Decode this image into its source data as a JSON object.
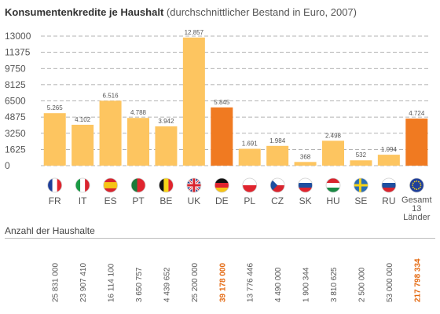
{
  "title": "Konsumentenkredite je Haushalt",
  "subtitle": "(durchschnittlicher Bestand in Euro, 2007)",
  "households_label": "Anzahl der Haushalte",
  "colors": {
    "bar": "#FDC560",
    "highlight": "#F07A21",
    "grid": "#9a9a9a",
    "axis_text": "#555555",
    "highlight_text": "#E46A12"
  },
  "chart_data": {
    "type": "bar",
    "categories": [
      "FR",
      "IT",
      "ES",
      "PT",
      "BE",
      "UK",
      "DE",
      "PL",
      "CZ",
      "SK",
      "HU",
      "SE",
      "RU",
      "Gesamt 13 Länder"
    ],
    "values": [
      5265,
      4102,
      6516,
      4788,
      3942,
      12857,
      5845,
      1691,
      1984,
      368,
      2498,
      532,
      1094,
      4724
    ],
    "value_labels": [
      "5.265",
      "4.102",
      "6.516",
      "4.788",
      "3.942",
      "12.857",
      "5.845",
      "1.691",
      "1.984",
      "368",
      "2.498",
      "532",
      "1.094",
      "4.724"
    ],
    "highlighted": [
      false,
      false,
      false,
      false,
      false,
      false,
      true,
      false,
      false,
      false,
      false,
      false,
      false,
      true
    ],
    "y_ticks": [
      0,
      1625,
      3250,
      4875,
      6500,
      8125,
      9750,
      11375,
      13000
    ],
    "ylim": [
      0,
      13000
    ],
    "grid": true,
    "households": [
      "25 831 000",
      "23 907 410",
      "16 114 100",
      "3 650 757",
      "4 439 652",
      "25 200 000",
      "39 178 000",
      "13 776 446",
      "4 490 000",
      "1 900 344",
      "3 810 625",
      "2 500 000",
      "53 000 000",
      "217 798 334"
    ],
    "flags": [
      "flag-fr-icon",
      "flag-it-icon",
      "flag-es-icon",
      "flag-pt-icon",
      "flag-be-icon",
      "flag-uk-icon",
      "flag-de-icon",
      "flag-pl-icon",
      "flag-cz-icon",
      "flag-sk-icon",
      "flag-hu-icon",
      "flag-se-icon",
      "flag-ru-icon",
      "flag-eu-icon"
    ]
  }
}
